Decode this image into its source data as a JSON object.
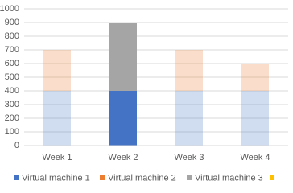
{
  "chart_data": {
    "type": "stacked_bar",
    "categories": [
      "Week 1",
      "Week 2",
      "Week 3",
      "Week 4"
    ],
    "series": [
      {
        "name": "Virtual machine 1",
        "color": "#4472c4",
        "values": [
          400,
          400,
          400,
          400
        ]
      },
      {
        "name": "Virtual machine 2",
        "color": "#ed7d31",
        "values": [
          300,
          null,
          300,
          200
        ]
      },
      {
        "name": "Virtual machine 3",
        "color": "#a5a5a5",
        "values": [
          null,
          500,
          null,
          null
        ]
      },
      {
        "name": null,
        "color": "#ffc000",
        "values": [
          null,
          null,
          null,
          null
        ]
      }
    ],
    "highlight_category": 1,
    "faded_opacity": 0.25,
    "ylim": [
      0,
      1000
    ],
    "yticks": [
      0,
      100,
      200,
      300,
      400,
      500,
      600,
      700,
      800,
      900,
      1000
    ],
    "grid": true,
    "legend": "bottom"
  }
}
